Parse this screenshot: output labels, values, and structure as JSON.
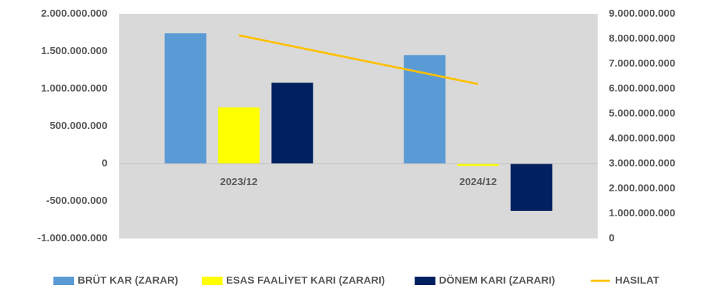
{
  "chart_data": {
    "type": "bar",
    "categories": [
      "2023/12",
      "2024/12"
    ],
    "series": [
      {
        "name": "BRÜT KAR (ZARAR)",
        "color": "#5b9bd5",
        "values": [
          1740000000,
          1450000000
        ]
      },
      {
        "name": "ESAS FAALİYET KARI (ZARARI)",
        "color": "#ffff00",
        "values": [
          750000000,
          -30000000
        ]
      },
      {
        "name": "DÖNEM KARI (ZARARI)",
        "color": "#002060",
        "values": [
          1080000000,
          -630000000
        ]
      },
      {
        "name": "HASILAT",
        "color": "#ffc000",
        "type": "line",
        "axis": "y2",
        "values": [
          8140000000,
          6190000000
        ]
      }
    ],
    "ylim": [
      -1000000000,
      2000000000
    ],
    "yticks": [
      {
        "value": -1000000000,
        "label": "-1.000.000.000"
      },
      {
        "value": -500000000,
        "label": "-500.000.000"
      },
      0,
      {
        "value": 500000000,
        "label": "500.000.000"
      },
      {
        "value": 1000000000,
        "label": "1.000.000.000"
      },
      {
        "value": 1500000000,
        "label": "1.500.000.000"
      },
      {
        "value": 2000000000,
        "label": "2.000.000.000"
      }
    ],
    "y2lim": [
      0,
      9000000000
    ],
    "y2ticks": [
      0,
      {
        "value": 1000000000,
        "label": "1.000.000.000"
      },
      {
        "value": 2000000000,
        "label": "2.000.000.000"
      },
      {
        "value": 3000000000,
        "label": "3.000.000.000"
      },
      {
        "value": 4000000000,
        "label": "4.000.000.000"
      },
      {
        "value": 5000000000,
        "label": "5.000.000.000"
      },
      {
        "value": 6000000000,
        "label": "6.000.000.000"
      },
      {
        "value": 7000000000,
        "label": "7.000.000.000"
      },
      {
        "value": 8000000000,
        "label": "8.000.000.000"
      },
      {
        "value": 9000000000,
        "label": "9.000.000.000"
      }
    ],
    "legend": "bottom"
  }
}
